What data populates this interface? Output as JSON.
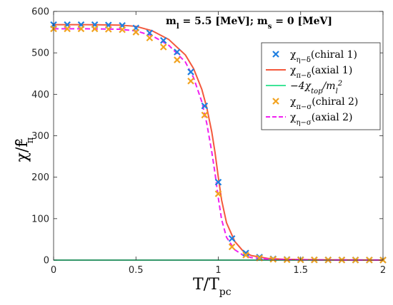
{
  "chart_data": {
    "type": "line",
    "annotation": "m_l = 5.5 [MeV]; m_s = 0 [MeV]",
    "xlabel": "T/T_pc",
    "ylabel": "χ/f_π^2",
    "xlim": [
      0,
      2
    ],
    "ylim": [
      0,
      600
    ],
    "xticks": [
      "0",
      "0.5",
      "1",
      "1.5",
      "2"
    ],
    "yticks": [
      "0",
      "100",
      "200",
      "300",
      "400",
      "500",
      "600"
    ],
    "grid": false,
    "legend_position": "top-right",
    "series": [
      {
        "name": "χ_{η−δ}(chiral 1)",
        "style": "markers-x",
        "color": "#1f7fe0",
        "x": [
          0.0,
          0.083,
          0.167,
          0.25,
          0.333,
          0.417,
          0.5,
          0.583,
          0.667,
          0.75,
          0.833,
          0.917,
          1.0,
          1.083,
          1.167,
          1.25,
          1.333,
          1.417,
          1.5,
          1.583,
          1.667,
          1.75,
          1.833,
          1.917,
          2.0
        ],
        "y": [
          568,
          568,
          568,
          568,
          567,
          566,
          560,
          548,
          530,
          502,
          454,
          372,
          188,
          52,
          17,
          7,
          3,
          1.5,
          1,
          0.7,
          0.5,
          0.4,
          0.3,
          0.2,
          0.2
        ]
      },
      {
        "name": "χ_{π−δ}(axial 1)",
        "style": "solid",
        "color": "#f4583c",
        "x": [
          0.0,
          0.2,
          0.4,
          0.5,
          0.6,
          0.7,
          0.8,
          0.85,
          0.9,
          0.93,
          0.96,
          0.98,
          1.0,
          1.02,
          1.05,
          1.1,
          1.15,
          1.2,
          1.3,
          1.4,
          1.6,
          2.0
        ],
        "y": [
          568,
          568,
          567,
          564,
          553,
          532,
          495,
          462,
          412,
          368,
          310,
          260,
          200,
          145,
          90,
          45,
          22,
          11,
          4,
          2,
          0.6,
          0.1
        ]
      },
      {
        "name": "−4χ_{top}/m_l^2",
        "style": "solid",
        "color": "#3ee598",
        "x": [
          0.0,
          2.0
        ],
        "y": [
          0,
          0
        ]
      },
      {
        "name": "χ_{π−σ}(chiral 2)",
        "style": "markers-x",
        "color": "#f2a320",
        "x": [
          0.0,
          0.083,
          0.167,
          0.25,
          0.333,
          0.417,
          0.5,
          0.583,
          0.667,
          0.75,
          0.833,
          0.917,
          1.0,
          1.083,
          1.167,
          1.25,
          1.333,
          1.417,
          1.5,
          1.583,
          1.667,
          1.75,
          1.833,
          1.917,
          2.0
        ],
        "y": [
          558,
          558,
          558,
          558,
          557,
          556,
          550,
          536,
          514,
          483,
          432,
          350,
          160,
          32,
          12,
          5,
          2,
          1,
          0.7,
          0.5,
          0.4,
          0.3,
          0.2,
          0.2,
          0.1
        ]
      },
      {
        "name": "χ_{η−σ}(axial 2)",
        "style": "dashed",
        "color": "#f01ff0",
        "x": [
          0.0,
          0.2,
          0.4,
          0.5,
          0.6,
          0.7,
          0.8,
          0.85,
          0.9,
          0.93,
          0.96,
          0.98,
          1.0,
          1.02,
          1.05,
          1.1,
          1.15,
          1.2,
          1.3,
          1.4,
          1.6,
          2.0
        ],
        "y": [
          558,
          558,
          557,
          553,
          541,
          518,
          478,
          440,
          382,
          330,
          262,
          210,
          150,
          98,
          55,
          25,
          12,
          6,
          2.5,
          1.2,
          0.4,
          0.1
        ]
      }
    ]
  }
}
